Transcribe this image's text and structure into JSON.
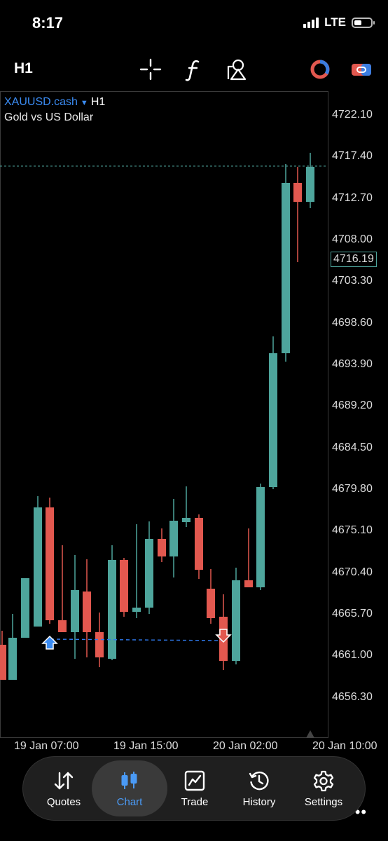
{
  "status_bar": {
    "time": "8:17",
    "network": "LTE"
  },
  "toolbar": {
    "timeframe": "H1",
    "icons": [
      "crosshair-icon",
      "indicators-icon",
      "objects-icon",
      "signal-icon",
      "toggle-icon"
    ]
  },
  "chart": {
    "symbol": "XAUUSD.cash",
    "timeframe": "H1",
    "description": "Gold vs US Dollar",
    "current_price": "4716.19",
    "price_labels": [
      "4722.10",
      "4717.40",
      "4712.70",
      "4708.00",
      "4703.30",
      "4698.60",
      "4693.90",
      "4689.20",
      "4684.50",
      "4679.80",
      "4675.10",
      "4670.40",
      "4665.70",
      "4661.00",
      "4656.30"
    ],
    "time_labels": [
      "19 Jan 07:00",
      "19 Jan 15:00",
      "20 Jan 02:00",
      "20 Jan 10:00"
    ],
    "colors": {
      "bull": "#4ea59c",
      "bear": "#e2584f",
      "trade_line": "#2f7bf0"
    }
  },
  "tabs": [
    {
      "label": "Quotes",
      "icon": "quotes-icon",
      "active": false
    },
    {
      "label": "Chart",
      "icon": "chart-icon",
      "active": true
    },
    {
      "label": "Trade",
      "icon": "trade-icon",
      "active": false
    },
    {
      "label": "History",
      "icon": "history-icon",
      "active": false
    },
    {
      "label": "Settings",
      "icon": "settings-icon",
      "active": false
    }
  ]
}
